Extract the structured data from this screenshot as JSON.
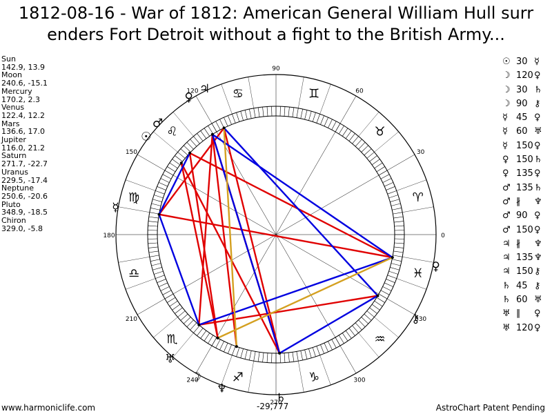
{
  "title_line1": "1812-08-16 - War of 1812: American General William Hull surr",
  "title_line2": "enders Fort Detroit without a fight to the British Army...",
  "planets": [
    {
      "name": "Sun",
      "coords": "142.9, 13.9",
      "glyph": "☉",
      "lon": 142.9
    },
    {
      "name": "Moon",
      "coords": "240.6, -15.1",
      "glyph": "☽",
      "lon": 240.6
    },
    {
      "name": "Mercury",
      "coords": "170.2, 2.3",
      "glyph": "☿",
      "lon": 170.2
    },
    {
      "name": "Venus",
      "coords": "122.4, 12.2",
      "glyph": "♀",
      "lon": 122.4
    },
    {
      "name": "Mars",
      "coords": "136.6, 17.0",
      "glyph": "♂",
      "lon": 136.6
    },
    {
      "name": "Jupiter",
      "coords": "116.0, 21.2",
      "glyph": "♃",
      "lon": 116.0
    },
    {
      "name": "Saturn",
      "coords": "271.7, -22.7",
      "glyph": "♄",
      "lon": 271.7
    },
    {
      "name": "Uranus",
      "coords": "229.5, -17.4",
      "glyph": "♅",
      "lon": 229.5
    },
    {
      "name": "Neptune",
      "coords": "250.6, -20.6",
      "glyph": "♆",
      "lon": 250.6
    },
    {
      "name": "Pluto",
      "coords": "348.9, -18.5",
      "glyph": "♀",
      "lon": 348.9
    },
    {
      "name": "Chiron",
      "coords": "329.0, -5.8",
      "glyph": "⚷",
      "lon": 329.0
    }
  ],
  "aspects": [
    {
      "p1": "☉",
      "angle": "30",
      "p2": "☿"
    },
    {
      "p1": "☽",
      "angle": "120",
      "p2": "♀"
    },
    {
      "p1": "☽",
      "angle": "30",
      "p2": "♄"
    },
    {
      "p1": "☽",
      "angle": "90",
      "p2": "⚷"
    },
    {
      "p1": "☿",
      "angle": "45",
      "p2": "♀"
    },
    {
      "p1": "☿",
      "angle": "60",
      "p2": "♅"
    },
    {
      "p1": "☿",
      "angle": "150",
      "p2": "♀"
    },
    {
      "p1": "♀",
      "angle": "150",
      "p2": "♄"
    },
    {
      "p1": "♀",
      "angle": "135",
      "p2": "♀"
    },
    {
      "p1": "♂",
      "angle": "135",
      "p2": "♄"
    },
    {
      "p1": "♂",
      "angle": "∦",
      "p2": "♆"
    },
    {
      "p1": "♂",
      "angle": "90",
      "p2": "♀"
    },
    {
      "p1": "♂",
      "angle": "150",
      "p2": "♀"
    },
    {
      "p1": "♃",
      "angle": "∦",
      "p2": "♆"
    },
    {
      "p1": "♃",
      "angle": "135",
      "p2": "♆"
    },
    {
      "p1": "♃",
      "angle": "150",
      "p2": "⚷"
    },
    {
      "p1": "♄",
      "angle": "45",
      "p2": "⚷"
    },
    {
      "p1": "♄",
      "angle": "60",
      "p2": "♅"
    },
    {
      "p1": "♅",
      "angle": "∥",
      "p2": "♀"
    },
    {
      "p1": "♅",
      "angle": "120",
      "p2": "♀"
    }
  ],
  "degree_labels": [
    "0",
    "30",
    "60",
    "90",
    "120",
    "150",
    "180",
    "210",
    "240",
    "270",
    "300",
    "330"
  ],
  "zodiac": [
    {
      "glyph": "♈",
      "lon": 15
    },
    {
      "glyph": "♉",
      "lon": 45
    },
    {
      "glyph": "♊",
      "lon": 75
    },
    {
      "glyph": "♋",
      "lon": 105
    },
    {
      "glyph": "♌",
      "lon": 135
    },
    {
      "glyph": "♍",
      "lon": 165
    },
    {
      "glyph": "♎",
      "lon": 195
    },
    {
      "glyph": "♏",
      "lon": 225
    },
    {
      "glyph": "♐",
      "lon": 255
    },
    {
      "glyph": "♑",
      "lon": 285
    },
    {
      "glyph": "♒",
      "lon": 315
    },
    {
      "glyph": "♓",
      "lon": 345
    }
  ],
  "aspect_lines": [
    {
      "a": 116.0,
      "b": 271.7,
      "color": "#e00000"
    },
    {
      "a": 122.4,
      "b": 250.6,
      "color": "#e00000"
    },
    {
      "a": 136.6,
      "b": 348.9,
      "color": "#e00000"
    },
    {
      "a": 142.9,
      "b": 240.6,
      "color": "#e00000"
    },
    {
      "a": 170.2,
      "b": 348.9,
      "color": "#e00000"
    },
    {
      "a": 170.2,
      "b": 116.0,
      "color": "#e00000"
    },
    {
      "a": 229.5,
      "b": 122.4,
      "color": "#e00000"
    },
    {
      "a": 229.5,
      "b": 329.0,
      "color": "#e00000"
    },
    {
      "a": 240.6,
      "b": 136.6,
      "color": "#e00000"
    },
    {
      "a": 271.7,
      "b": 142.9,
      "color": "#e00000"
    },
    {
      "a": 122.4,
      "b": 271.7,
      "color": "#e00000"
    },
    {
      "a": 116.0,
      "b": 329.0,
      "color": "#0000e0"
    },
    {
      "a": 122.4,
      "b": 348.9,
      "color": "#0000e0"
    },
    {
      "a": 136.6,
      "b": 170.2,
      "color": "#0000e0"
    },
    {
      "a": 170.2,
      "b": 229.5,
      "color": "#0000e0"
    },
    {
      "a": 229.5,
      "b": 348.9,
      "color": "#0000e0"
    },
    {
      "a": 271.7,
      "b": 329.0,
      "color": "#0000e0"
    },
    {
      "a": 271.7,
      "b": 122.4,
      "color": "#0000e0"
    },
    {
      "a": 240.6,
      "b": 348.9,
      "color": "#d4a020"
    },
    {
      "a": 116.0,
      "b": 250.6,
      "color": "#d4a020"
    }
  ],
  "footer_left": "www.harmoniclife.com",
  "footer_right": "AstroChart Patent Pending",
  "bottom_coord": "-29,777"
}
